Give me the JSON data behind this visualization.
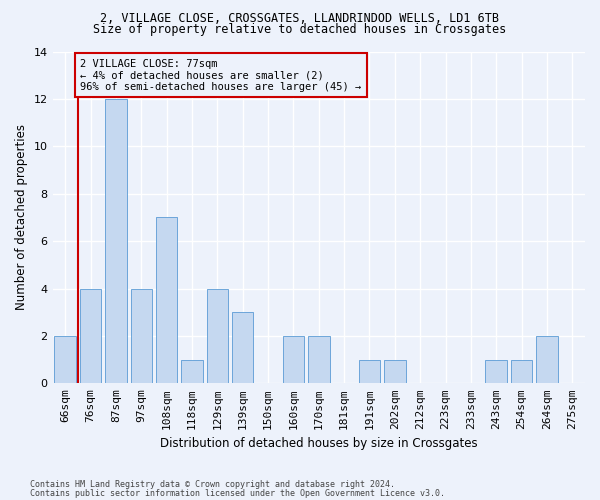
{
  "title_line1": "2, VILLAGE CLOSE, CROSSGATES, LLANDRINDOD WELLS, LD1 6TB",
  "title_line2": "Size of property relative to detached houses in Crossgates",
  "xlabel": "Distribution of detached houses by size in Crossgates",
  "ylabel": "Number of detached properties",
  "categories": [
    "66sqm",
    "76sqm",
    "87sqm",
    "97sqm",
    "108sqm",
    "118sqm",
    "129sqm",
    "139sqm",
    "150sqm",
    "160sqm",
    "170sqm",
    "181sqm",
    "191sqm",
    "202sqm",
    "212sqm",
    "223sqm",
    "233sqm",
    "243sqm",
    "254sqm",
    "264sqm",
    "275sqm"
  ],
  "values": [
    2,
    4,
    12,
    4,
    7,
    1,
    4,
    3,
    0,
    2,
    2,
    0,
    1,
    1,
    0,
    0,
    0,
    1,
    1,
    2,
    0
  ],
  "bar_color": "#c5d8f0",
  "bar_edge_color": "#5b9bd5",
  "highlight_color": "#cc0000",
  "ylim": [
    0,
    14
  ],
  "yticks": [
    0,
    2,
    4,
    6,
    8,
    10,
    12,
    14
  ],
  "annotation_text": "2 VILLAGE CLOSE: 77sqm\n← 4% of detached houses are smaller (2)\n96% of semi-detached houses are larger (45) →",
  "footer_line1": "Contains HM Land Registry data © Crown copyright and database right 2024.",
  "footer_line2": "Contains public sector information licensed under the Open Government Licence v3.0.",
  "background_color": "#edf2fb",
  "grid_color": "#ffffff"
}
